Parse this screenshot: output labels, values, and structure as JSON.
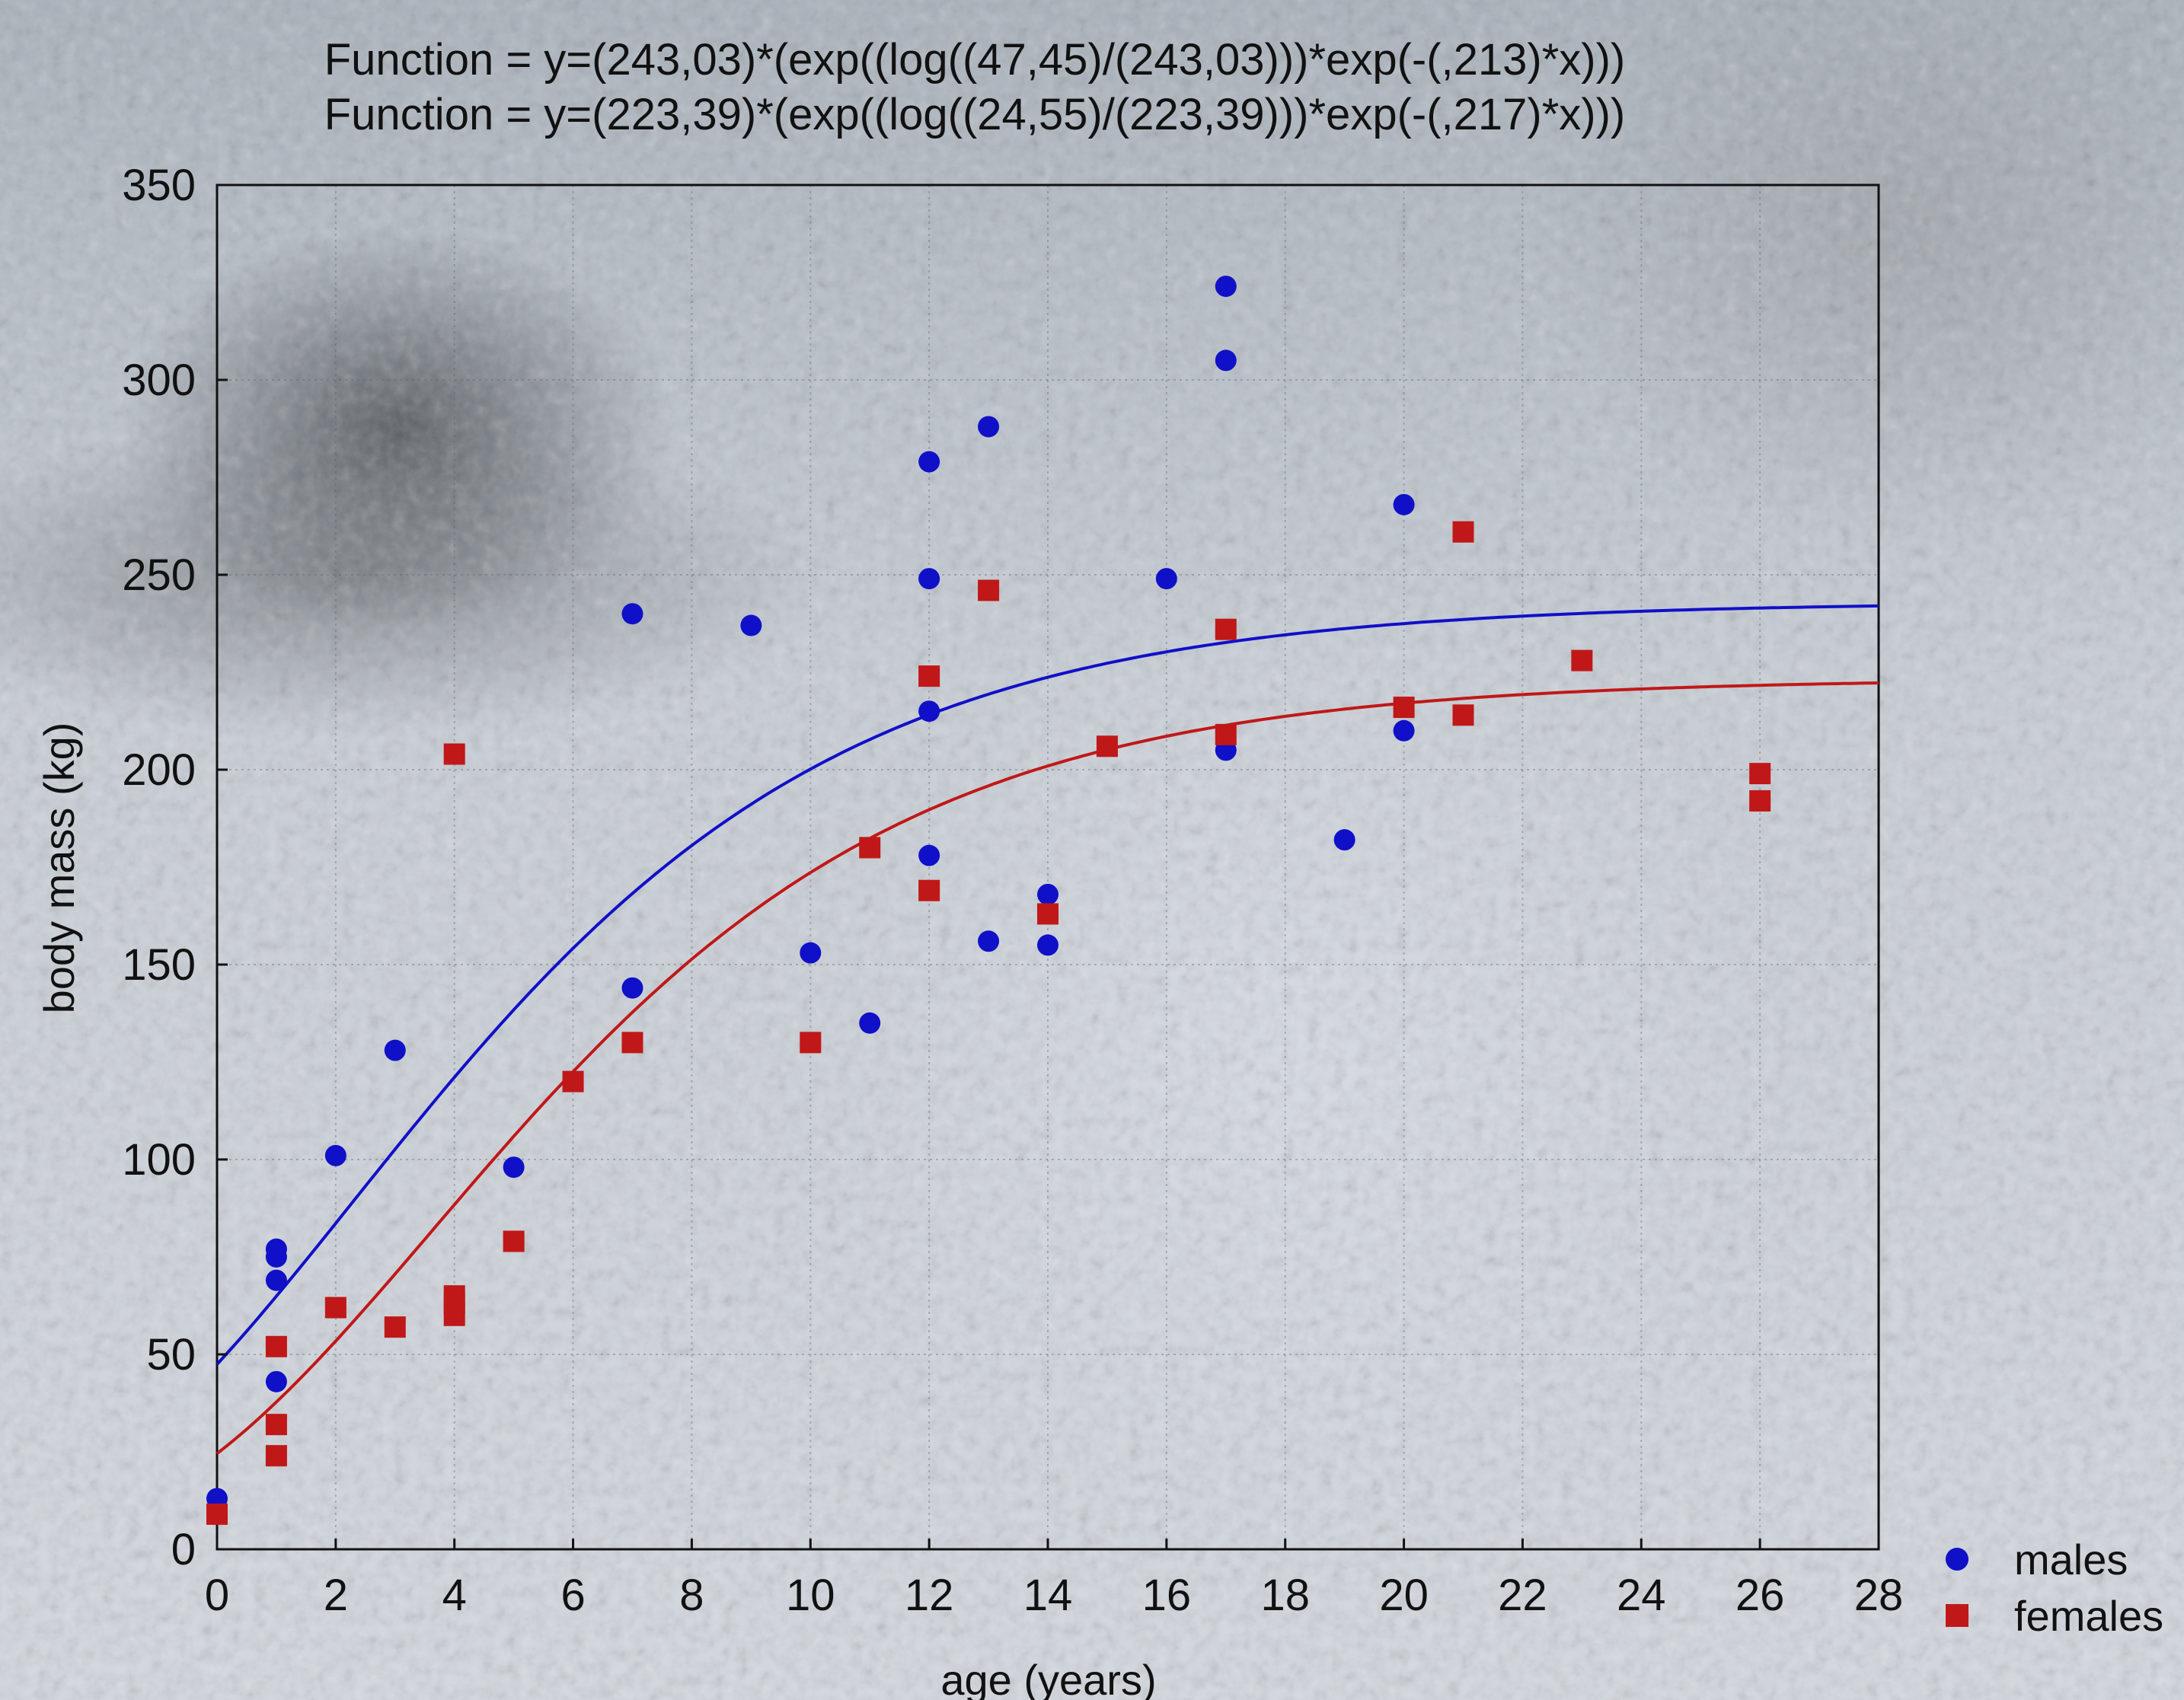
{
  "chart_data": {
    "type": "scatter",
    "formula_lines": [
      "Function = y=(243,03)*(exp((log((47,45)/(243,03)))*exp(-(,213)*x)))",
      "Function = y=(223,39)*(exp((log((24,55)/(223,39)))*exp(-(,217)*x)))"
    ],
    "xlabel": "age (years)",
    "ylabel": "body mass (kg)",
    "xlim": [
      0,
      28
    ],
    "ylim": [
      0,
      350
    ],
    "xticks": [
      "0",
      "2",
      "4",
      "6",
      "8",
      "10",
      "12",
      "14",
      "16",
      "18",
      "20",
      "22",
      "24",
      "26",
      "28"
    ],
    "yticks": [
      "0",
      "50",
      "100",
      "150",
      "200",
      "250",
      "300",
      "350"
    ],
    "grid": true,
    "legend_position": "bottom-right, outside plot",
    "series": [
      {
        "name": "males",
        "marker": "circle",
        "color": "#1010c8",
        "points": [
          [
            0,
            13
          ],
          [
            1,
            77
          ],
          [
            1,
            75
          ],
          [
            1,
            69
          ],
          [
            1,
            43
          ],
          [
            2,
            101
          ],
          [
            3,
            128
          ],
          [
            5,
            98
          ],
          [
            7,
            240
          ],
          [
            7,
            144
          ],
          [
            9,
            237
          ],
          [
            10,
            153
          ],
          [
            11,
            135
          ],
          [
            12,
            279
          ],
          [
            12,
            249
          ],
          [
            12,
            215
          ],
          [
            12,
            178
          ],
          [
            13,
            288
          ],
          [
            13,
            156
          ],
          [
            14,
            168
          ],
          [
            14,
            155
          ],
          [
            16,
            249
          ],
          [
            17,
            324
          ],
          [
            17,
            305
          ],
          [
            17,
            205
          ],
          [
            19,
            182
          ],
          [
            20,
            268
          ],
          [
            20,
            210
          ]
        ],
        "fit": {
          "a": 243.03,
          "y0": 47.45,
          "k": 0.213
        }
      },
      {
        "name": "females",
        "marker": "square",
        "color": "#c01818",
        "points": [
          [
            0,
            9
          ],
          [
            1,
            52
          ],
          [
            1,
            32
          ],
          [
            1,
            24
          ],
          [
            2,
            62
          ],
          [
            3,
            57
          ],
          [
            4,
            204
          ],
          [
            4,
            65
          ],
          [
            4,
            63
          ],
          [
            4,
            60
          ],
          [
            5,
            79
          ],
          [
            6,
            120
          ],
          [
            7,
            130
          ],
          [
            10,
            130
          ],
          [
            11,
            180
          ],
          [
            12,
            224
          ],
          [
            12,
            169
          ],
          [
            13,
            246
          ],
          [
            14,
            163
          ],
          [
            15,
            206
          ],
          [
            17,
            236
          ],
          [
            17,
            209
          ],
          [
            20,
            216
          ],
          [
            21,
            261
          ],
          [
            21,
            214
          ],
          [
            23,
            228
          ],
          [
            26,
            199
          ],
          [
            26,
            192
          ]
        ],
        "fit": {
          "a": 223.39,
          "y0": 24.55,
          "k": 0.217
        }
      }
    ]
  }
}
